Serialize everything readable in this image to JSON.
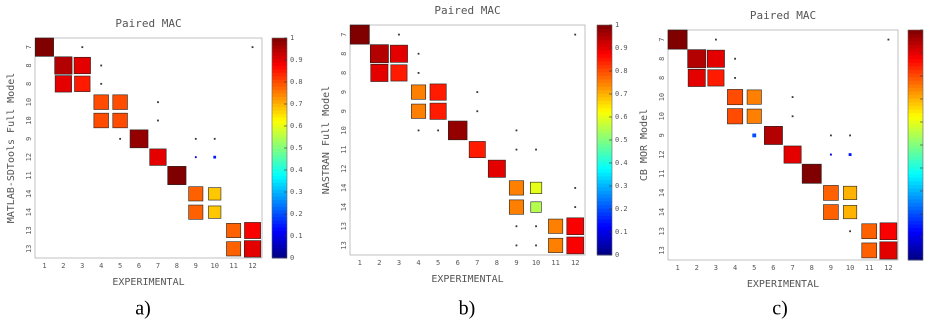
{
  "chart_data": [
    {
      "type": "mac-matrix",
      "title": "Paired MAC",
      "xlabel": "EXPERIMENTAL",
      "ylabel": "MATLAB-SDTools  Full Model",
      "caption": "a)",
      "categories": [
        "1",
        "2",
        "3",
        "4",
        "5",
        "6",
        "7",
        "8",
        "9",
        "10",
        "11",
        "12"
      ],
      "y_categories": [
        "7",
        "8",
        "8",
        "10",
        "10",
        "9",
        "12",
        "11",
        "14",
        "14",
        "13",
        "13"
      ],
      "clim": [
        0,
        1
      ],
      "cticks": [
        0,
        0.1,
        0.2,
        0.3,
        0.4,
        0.5,
        0.6,
        0.7,
        0.8,
        0.9,
        1
      ],
      "colormap": "jet",
      "values": [
        [
          1,
          0,
          0.03,
          0,
          0,
          0,
          0,
          0,
          0,
          0,
          0,
          0.02
        ],
        [
          0,
          0.95,
          0.9,
          0.03,
          0,
          0,
          0,
          0,
          0,
          0,
          0,
          0
        ],
        [
          0,
          0.9,
          0.85,
          0.03,
          0,
          0,
          0,
          0,
          0,
          0,
          0,
          0
        ],
        [
          0,
          0,
          0,
          0.8,
          0.8,
          0,
          0.03,
          0,
          0,
          0,
          0,
          0
        ],
        [
          0,
          0,
          0,
          0.8,
          0.8,
          0,
          0.04,
          0,
          0,
          0,
          0,
          0
        ],
        [
          0,
          0,
          0,
          0,
          0.03,
          0.98,
          0,
          0,
          0.03,
          0.03,
          0,
          0
        ],
        [
          0,
          0,
          0,
          0,
          0,
          0,
          0.9,
          0,
          0.1,
          0.15,
          0,
          0
        ],
        [
          0,
          0,
          0,
          0,
          0,
          0,
          0,
          1,
          0,
          0,
          0,
          0
        ],
        [
          0,
          0,
          0,
          0,
          0,
          0,
          0,
          0,
          0.78,
          0.68,
          0,
          0
        ],
        [
          0,
          0,
          0,
          0,
          0,
          0,
          0,
          0,
          0.78,
          0.68,
          0,
          0
        ],
        [
          0,
          0,
          0,
          0,
          0,
          0,
          0,
          0,
          0,
          0,
          0.78,
          0.88
        ],
        [
          0,
          0,
          0,
          0,
          0,
          0,
          0,
          0,
          0,
          0,
          0.78,
          0.9
        ]
      ]
    },
    {
      "type": "mac-matrix",
      "title": "Paired MAC",
      "xlabel": "EXPERIMENTAL",
      "ylabel": "NASTRAN Full Model",
      "caption": "b)",
      "categories": [
        "1",
        "2",
        "3",
        "4",
        "5",
        "6",
        "7",
        "8",
        "9",
        "10",
        "11",
        "12"
      ],
      "y_categories": [
        "7",
        "8",
        "8",
        "9",
        "9",
        "10",
        "11",
        "12",
        "14",
        "14",
        "13",
        "13"
      ],
      "clim": [
        0,
        1
      ],
      "cticks": [
        0,
        0.1,
        0.2,
        0.3,
        0.4,
        0.5,
        0.6,
        0.7,
        0.8,
        0.9,
        1
      ],
      "colormap": "jet",
      "values": [
        [
          1,
          0,
          0.03,
          0,
          0,
          0,
          0,
          0,
          0,
          0,
          0,
          0.02
        ],
        [
          0,
          0.95,
          0.9,
          0.03,
          0,
          0,
          0,
          0,
          0,
          0,
          0,
          0
        ],
        [
          0,
          0.9,
          0.85,
          0.03,
          0,
          0,
          0,
          0,
          0,
          0,
          0,
          0
        ],
        [
          0,
          0,
          0,
          0.75,
          0.85,
          0,
          0.03,
          0,
          0,
          0,
          0,
          0
        ],
        [
          0,
          0,
          0,
          0.75,
          0.85,
          0,
          0.03,
          0,
          0,
          0,
          0,
          0
        ],
        [
          0,
          0,
          0,
          0.04,
          0.03,
          0.98,
          0,
          0,
          0.03,
          0,
          0,
          0
        ],
        [
          0,
          0,
          0,
          0,
          0,
          0,
          0.85,
          0,
          0.03,
          0.05,
          0,
          0
        ],
        [
          0,
          0,
          0,
          0,
          0,
          0,
          0,
          0.9,
          0,
          0,
          0,
          0
        ],
        [
          0,
          0,
          0,
          0,
          0,
          0,
          0,
          0,
          0.75,
          0.6,
          0,
          0.03
        ],
        [
          0,
          0,
          0,
          0,
          0,
          0,
          0,
          0,
          0.75,
          0.55,
          0,
          0.03
        ],
        [
          0,
          0,
          0,
          0,
          0,
          0,
          0,
          0,
          0.03,
          0.03,
          0.75,
          0.88
        ],
        [
          0,
          0,
          0,
          0,
          0,
          0,
          0,
          0,
          0.03,
          0.05,
          0.75,
          0.88
        ]
      ]
    },
    {
      "type": "mac-matrix",
      "title": "Paired MAC",
      "xlabel": "EXPERIMENTAL",
      "ylabel": "CB MOR Model",
      "caption": "c)",
      "categories": [
        "1",
        "2",
        "3",
        "4",
        "5",
        "6",
        "7",
        "8",
        "9",
        "10",
        "11",
        "12"
      ],
      "y_categories": [
        "7",
        "8",
        "8",
        "10",
        "10",
        "9",
        "12",
        "11",
        "14",
        "14",
        "13",
        "13"
      ],
      "clim": [
        0,
        1
      ],
      "cticks": [
        0,
        0.1,
        0.2,
        0.3,
        0.4,
        0.5,
        0.6,
        0.7,
        0.8,
        0.9,
        1
      ],
      "colormap": "jet",
      "values": [
        [
          1,
          0,
          0.03,
          0,
          0,
          0,
          0,
          0,
          0,
          0,
          0,
          0.02
        ],
        [
          0,
          0.95,
          0.9,
          0.03,
          0,
          0,
          0,
          0,
          0,
          0,
          0,
          0
        ],
        [
          0,
          0.9,
          0.85,
          0.03,
          0,
          0,
          0,
          0,
          0,
          0,
          0,
          0
        ],
        [
          0,
          0,
          0,
          0.8,
          0.75,
          0,
          0.03,
          0,
          0,
          0,
          0,
          0
        ],
        [
          0,
          0,
          0,
          0.8,
          0.75,
          0,
          0.04,
          0,
          0,
          0,
          0,
          0
        ],
        [
          0,
          0,
          0,
          0,
          0.2,
          0.95,
          0,
          0,
          0.03,
          0.03,
          0,
          0
        ],
        [
          0,
          0,
          0,
          0,
          0,
          0,
          0.9,
          0,
          0.1,
          0.15,
          0,
          0
        ],
        [
          0,
          0,
          0,
          0,
          0,
          0,
          0,
          1,
          0,
          0,
          0,
          0
        ],
        [
          0,
          0,
          0,
          0,
          0,
          0,
          0,
          0,
          0.78,
          0.7,
          0,
          0
        ],
        [
          0,
          0,
          0,
          0,
          0,
          0,
          0,
          0,
          0.78,
          0.7,
          0,
          0
        ],
        [
          0,
          0,
          0,
          0,
          0,
          0,
          0,
          0,
          0,
          0.03,
          0.78,
          0.88
        ],
        [
          0,
          0,
          0,
          0,
          0,
          0,
          0,
          0,
          0,
          0,
          0.78,
          0.9
        ]
      ]
    }
  ]
}
